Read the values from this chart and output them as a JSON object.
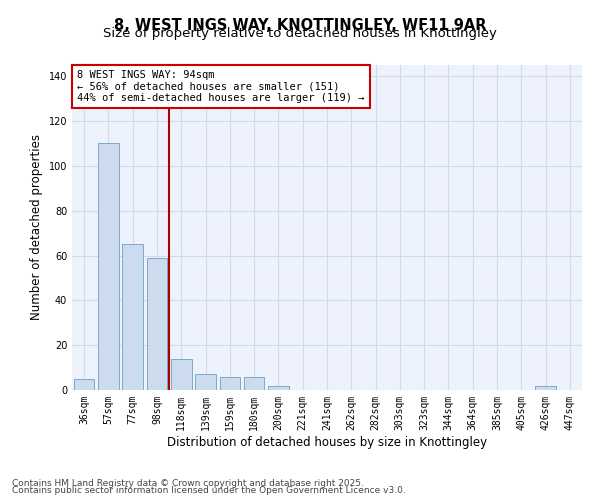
{
  "title_line1": "8, WEST INGS WAY, KNOTTINGLEY, WF11 9AR",
  "title_line2": "Size of property relative to detached houses in Knottingley",
  "xlabel": "Distribution of detached houses by size in Knottingley",
  "ylabel": "Number of detached properties",
  "categories": [
    "36sqm",
    "57sqm",
    "77sqm",
    "98sqm",
    "118sqm",
    "139sqm",
    "159sqm",
    "180sqm",
    "200sqm",
    "221sqm",
    "241sqm",
    "262sqm",
    "282sqm",
    "303sqm",
    "323sqm",
    "344sqm",
    "364sqm",
    "385sqm",
    "405sqm",
    "426sqm",
    "447sqm"
  ],
  "values": [
    5,
    110,
    65,
    59,
    14,
    7,
    6,
    6,
    2,
    0,
    0,
    0,
    0,
    0,
    0,
    0,
    0,
    0,
    0,
    2,
    0
  ],
  "bar_color": "#ccdcee",
  "bar_edge_color": "#7aaac8",
  "grid_color": "#d0daea",
  "background_color": "#eef2fc",
  "vline_color": "#aa0000",
  "annotation_text": "8 WEST INGS WAY: 94sqm\n← 56% of detached houses are smaller (151)\n44% of semi-detached houses are larger (119) →",
  "annotation_box_color": "#cc0000",
  "ylim": [
    0,
    145
  ],
  "yticks": [
    0,
    20,
    40,
    60,
    80,
    100,
    120,
    140
  ],
  "footer_line1": "Contains HM Land Registry data © Crown copyright and database right 2025.",
  "footer_line2": "Contains public sector information licensed under the Open Government Licence v3.0.",
  "title_fontsize": 10.5,
  "subtitle_fontsize": 9.5,
  "axis_label_fontsize": 8.5,
  "tick_fontsize": 7,
  "annotation_fontsize": 7.5,
  "footer_fontsize": 6.5
}
